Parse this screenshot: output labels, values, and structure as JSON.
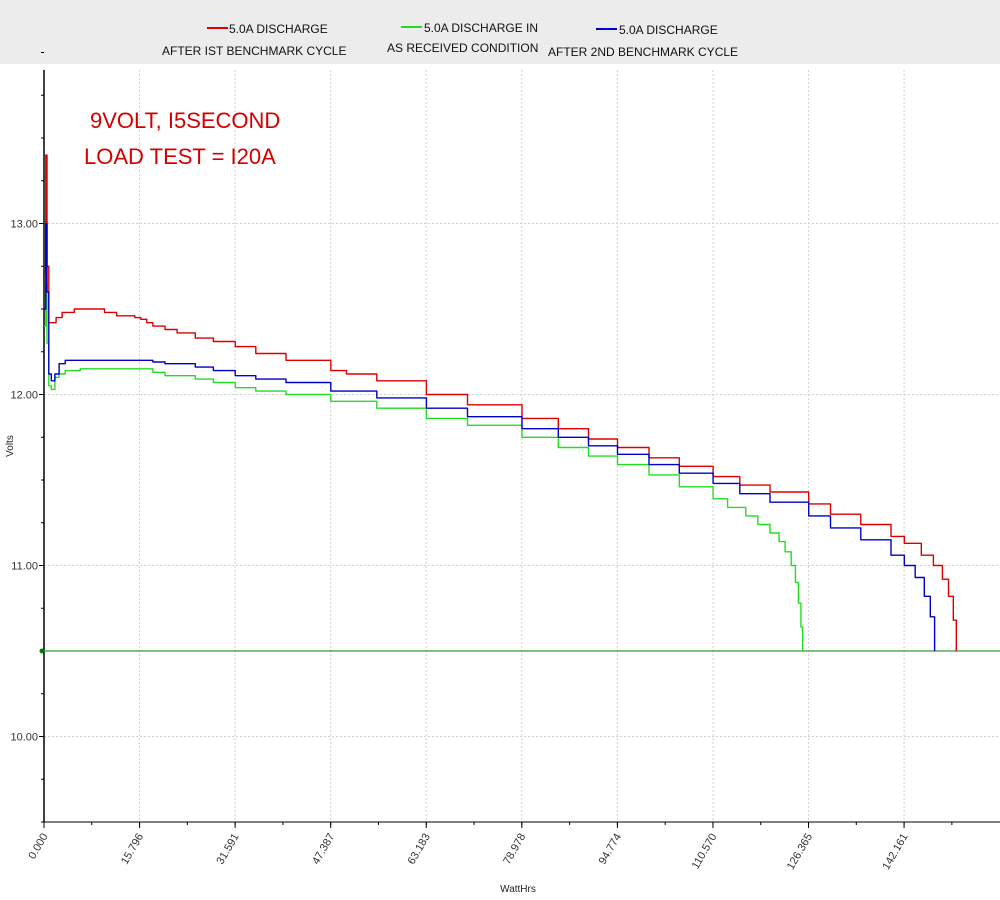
{
  "chart_data": {
    "type": "line",
    "xlabel": "WattHrs",
    "ylabel": "Volts",
    "xlim": [
      0,
      163
    ],
    "ylim": [
      9.5,
      14.2
    ],
    "x_ticks": [
      "0.000",
      "15.796",
      "31.591",
      "47.387",
      "63.183",
      "78.978",
      "94.774",
      "110.570",
      "126.365",
      "142.161"
    ],
    "y_ticks": [
      "10.00",
      "11.00",
      "12.00",
      "13.00"
    ],
    "grid": true,
    "annotation": [
      "9VOLT, I5SECOND",
      "LOAD TEST = I20A"
    ],
    "reference_line": {
      "y": 10.5,
      "color": "#008000"
    },
    "legend_position": "top",
    "series": [
      {
        "name": "5.0A DISCHARGE AFTER IST BENCHMARK CYCLE",
        "legend": [
          "5.0A DISCHARGE",
          "AFTER IST BENCHMARK CYCLE"
        ],
        "color": "#dd0000",
        "points": [
          [
            0,
            12.7
          ],
          [
            0.3,
            13.4
          ],
          [
            0.5,
            12.75
          ],
          [
            0.8,
            12.42
          ],
          [
            1.5,
            12.42
          ],
          [
            2,
            12.45
          ],
          [
            3,
            12.48
          ],
          [
            5,
            12.5
          ],
          [
            8,
            12.5
          ],
          [
            10,
            12.48
          ],
          [
            12,
            12.46
          ],
          [
            15,
            12.45
          ],
          [
            16,
            12.44
          ],
          [
            17,
            12.42
          ],
          [
            18,
            12.4
          ],
          [
            20,
            12.38
          ],
          [
            22,
            12.36
          ],
          [
            25,
            12.33
          ],
          [
            28,
            12.31
          ],
          [
            31.6,
            12.28
          ],
          [
            35,
            12.24
          ],
          [
            40,
            12.2
          ],
          [
            47.4,
            12.14
          ],
          [
            50,
            12.12
          ],
          [
            55,
            12.08
          ],
          [
            63.2,
            12.0
          ],
          [
            70,
            11.94
          ],
          [
            79,
            11.86
          ],
          [
            85,
            11.8
          ],
          [
            90,
            11.74
          ],
          [
            94.8,
            11.69
          ],
          [
            100,
            11.63
          ],
          [
            105,
            11.58
          ],
          [
            110.6,
            11.52
          ],
          [
            115,
            11.47
          ],
          [
            120,
            11.43
          ],
          [
            126.4,
            11.36
          ],
          [
            130,
            11.3
          ],
          [
            135,
            11.24
          ],
          [
            140,
            11.17
          ],
          [
            142.2,
            11.13
          ],
          [
            145,
            11.06
          ],
          [
            147,
            11.0
          ],
          [
            148.5,
            10.92
          ],
          [
            149.5,
            10.82
          ],
          [
            150.3,
            10.68
          ],
          [
            150.8,
            10.5
          ]
        ]
      },
      {
        "name": "5.0A DISCHARGE IN AS RECEIVED CONDITION",
        "legend": [
          "5.0A DISCHARGE IN",
          "AS RECEIVED CONDITION"
        ],
        "color": "#22dd22",
        "points": [
          [
            0,
            12.4
          ],
          [
            0.3,
            12.65
          ],
          [
            0.5,
            12.3
          ],
          [
            0.8,
            12.05
          ],
          [
            1.2,
            12.03
          ],
          [
            1.8,
            12.1
          ],
          [
            2.5,
            12.12
          ],
          [
            3.5,
            12.14
          ],
          [
            6,
            12.15
          ],
          [
            10,
            12.15
          ],
          [
            15.8,
            12.15
          ],
          [
            18,
            12.13
          ],
          [
            20,
            12.11
          ],
          [
            25,
            12.09
          ],
          [
            28,
            12.07
          ],
          [
            31.6,
            12.04
          ],
          [
            35,
            12.02
          ],
          [
            40,
            12.0
          ],
          [
            47.4,
            11.96
          ],
          [
            55,
            11.92
          ],
          [
            63.2,
            11.86
          ],
          [
            70,
            11.82
          ],
          [
            79,
            11.75
          ],
          [
            85,
            11.69
          ],
          [
            90,
            11.64
          ],
          [
            94.8,
            11.59
          ],
          [
            100,
            11.53
          ],
          [
            105,
            11.46
          ],
          [
            110.6,
            11.39
          ],
          [
            113,
            11.34
          ],
          [
            116,
            11.29
          ],
          [
            118,
            11.24
          ],
          [
            120,
            11.19
          ],
          [
            121.5,
            11.14
          ],
          [
            122.5,
            11.08
          ],
          [
            123.5,
            11.0
          ],
          [
            124.2,
            10.9
          ],
          [
            124.7,
            10.78
          ],
          [
            125.1,
            10.64
          ],
          [
            125.4,
            10.5
          ]
        ]
      },
      {
        "name": "5.0A DISCHARGE AFTER 2ND BENCHMARK CYCLE",
        "legend": [
          "5.0A DISCHARGE",
          "AFTER 2ND BENCHMARK CYCLE"
        ],
        "color": "#0000cc",
        "points": [
          [
            0,
            12.5
          ],
          [
            0.3,
            13.0
          ],
          [
            0.5,
            12.6
          ],
          [
            0.8,
            12.12
          ],
          [
            1.2,
            12.08
          ],
          [
            1.8,
            12.12
          ],
          [
            2.5,
            12.18
          ],
          [
            3.5,
            12.2
          ],
          [
            8,
            12.2
          ],
          [
            15.8,
            12.2
          ],
          [
            18,
            12.19
          ],
          [
            20,
            12.18
          ],
          [
            25,
            12.16
          ],
          [
            28,
            12.14
          ],
          [
            31.6,
            12.11
          ],
          [
            35,
            12.09
          ],
          [
            40,
            12.07
          ],
          [
            47.4,
            12.02
          ],
          [
            55,
            11.98
          ],
          [
            63.2,
            11.92
          ],
          [
            70,
            11.87
          ],
          [
            79,
            11.8
          ],
          [
            85,
            11.75
          ],
          [
            90,
            11.7
          ],
          [
            94.8,
            11.65
          ],
          [
            100,
            11.59
          ],
          [
            105,
            11.54
          ],
          [
            110.6,
            11.48
          ],
          [
            115,
            11.42
          ],
          [
            120,
            11.37
          ],
          [
            126.4,
            11.29
          ],
          [
            130,
            11.22
          ],
          [
            135,
            11.15
          ],
          [
            140,
            11.06
          ],
          [
            142.2,
            11.0
          ],
          [
            144,
            10.93
          ],
          [
            145.5,
            10.82
          ],
          [
            146.5,
            10.7
          ],
          [
            147.2,
            10.5
          ]
        ]
      }
    ]
  }
}
